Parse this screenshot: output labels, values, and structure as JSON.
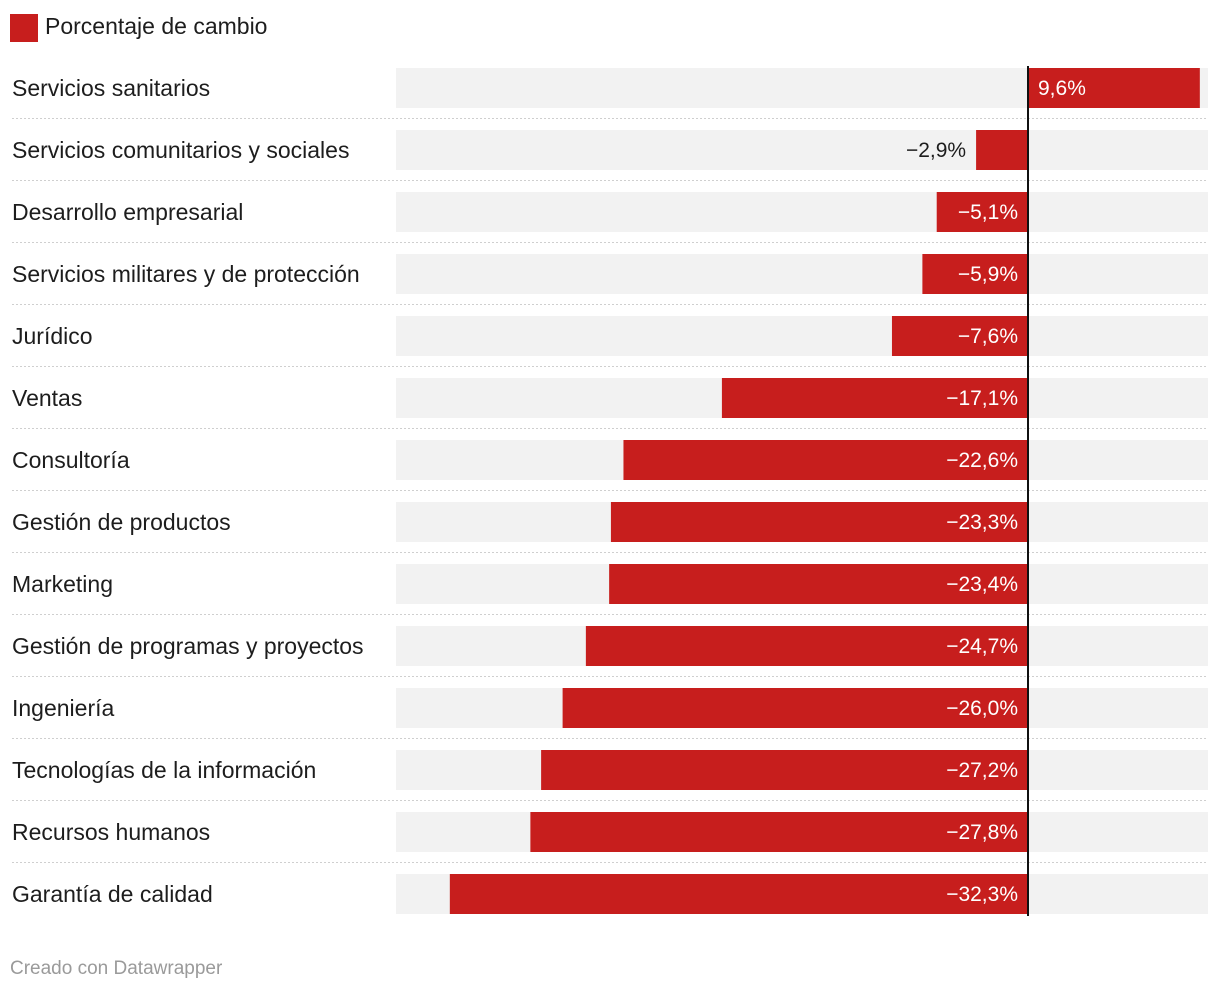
{
  "chart_data": {
    "type": "bar",
    "orientation": "horizontal",
    "legend": {
      "label": "Porcentaje de cambio",
      "position": "top-left"
    },
    "xlim": [
      -35,
      10
    ],
    "bar_color": "#c71e1d",
    "track_color": "#f2f2f2",
    "series": [
      {
        "name": "Porcentaje de cambio",
        "values": [
          9.6,
          -2.9,
          -5.1,
          -5.9,
          -7.6,
          -17.1,
          -22.6,
          -23.3,
          -23.4,
          -24.7,
          -26.0,
          -27.2,
          -27.8,
          -32.3
        ]
      }
    ],
    "categories": [
      "Servicios sanitarios",
      "Servicios comunitarios y sociales",
      "Desarrollo empresarial",
      "Servicios militares y de protección",
      "Jurídico",
      "Ventas",
      "Consultoría",
      "Gestión de productos",
      "Marketing",
      "Gestión de programas y proyectos",
      "Ingeniería",
      "Tecnologías de la información",
      "Recursos humanos",
      "Garantía de calidad"
    ],
    "value_labels": [
      "9,6%",
      "−2,9%",
      "−5,1%",
      "−5,9%",
      "−7,6%",
      "−17,1%",
      "−22,6%",
      "−23,3%",
      "−23,4%",
      "−24,7%",
      "−26,0%",
      "−27,2%",
      "−27,8%",
      "−32,3%"
    ]
  },
  "credit": "Creado con Datawrapper"
}
